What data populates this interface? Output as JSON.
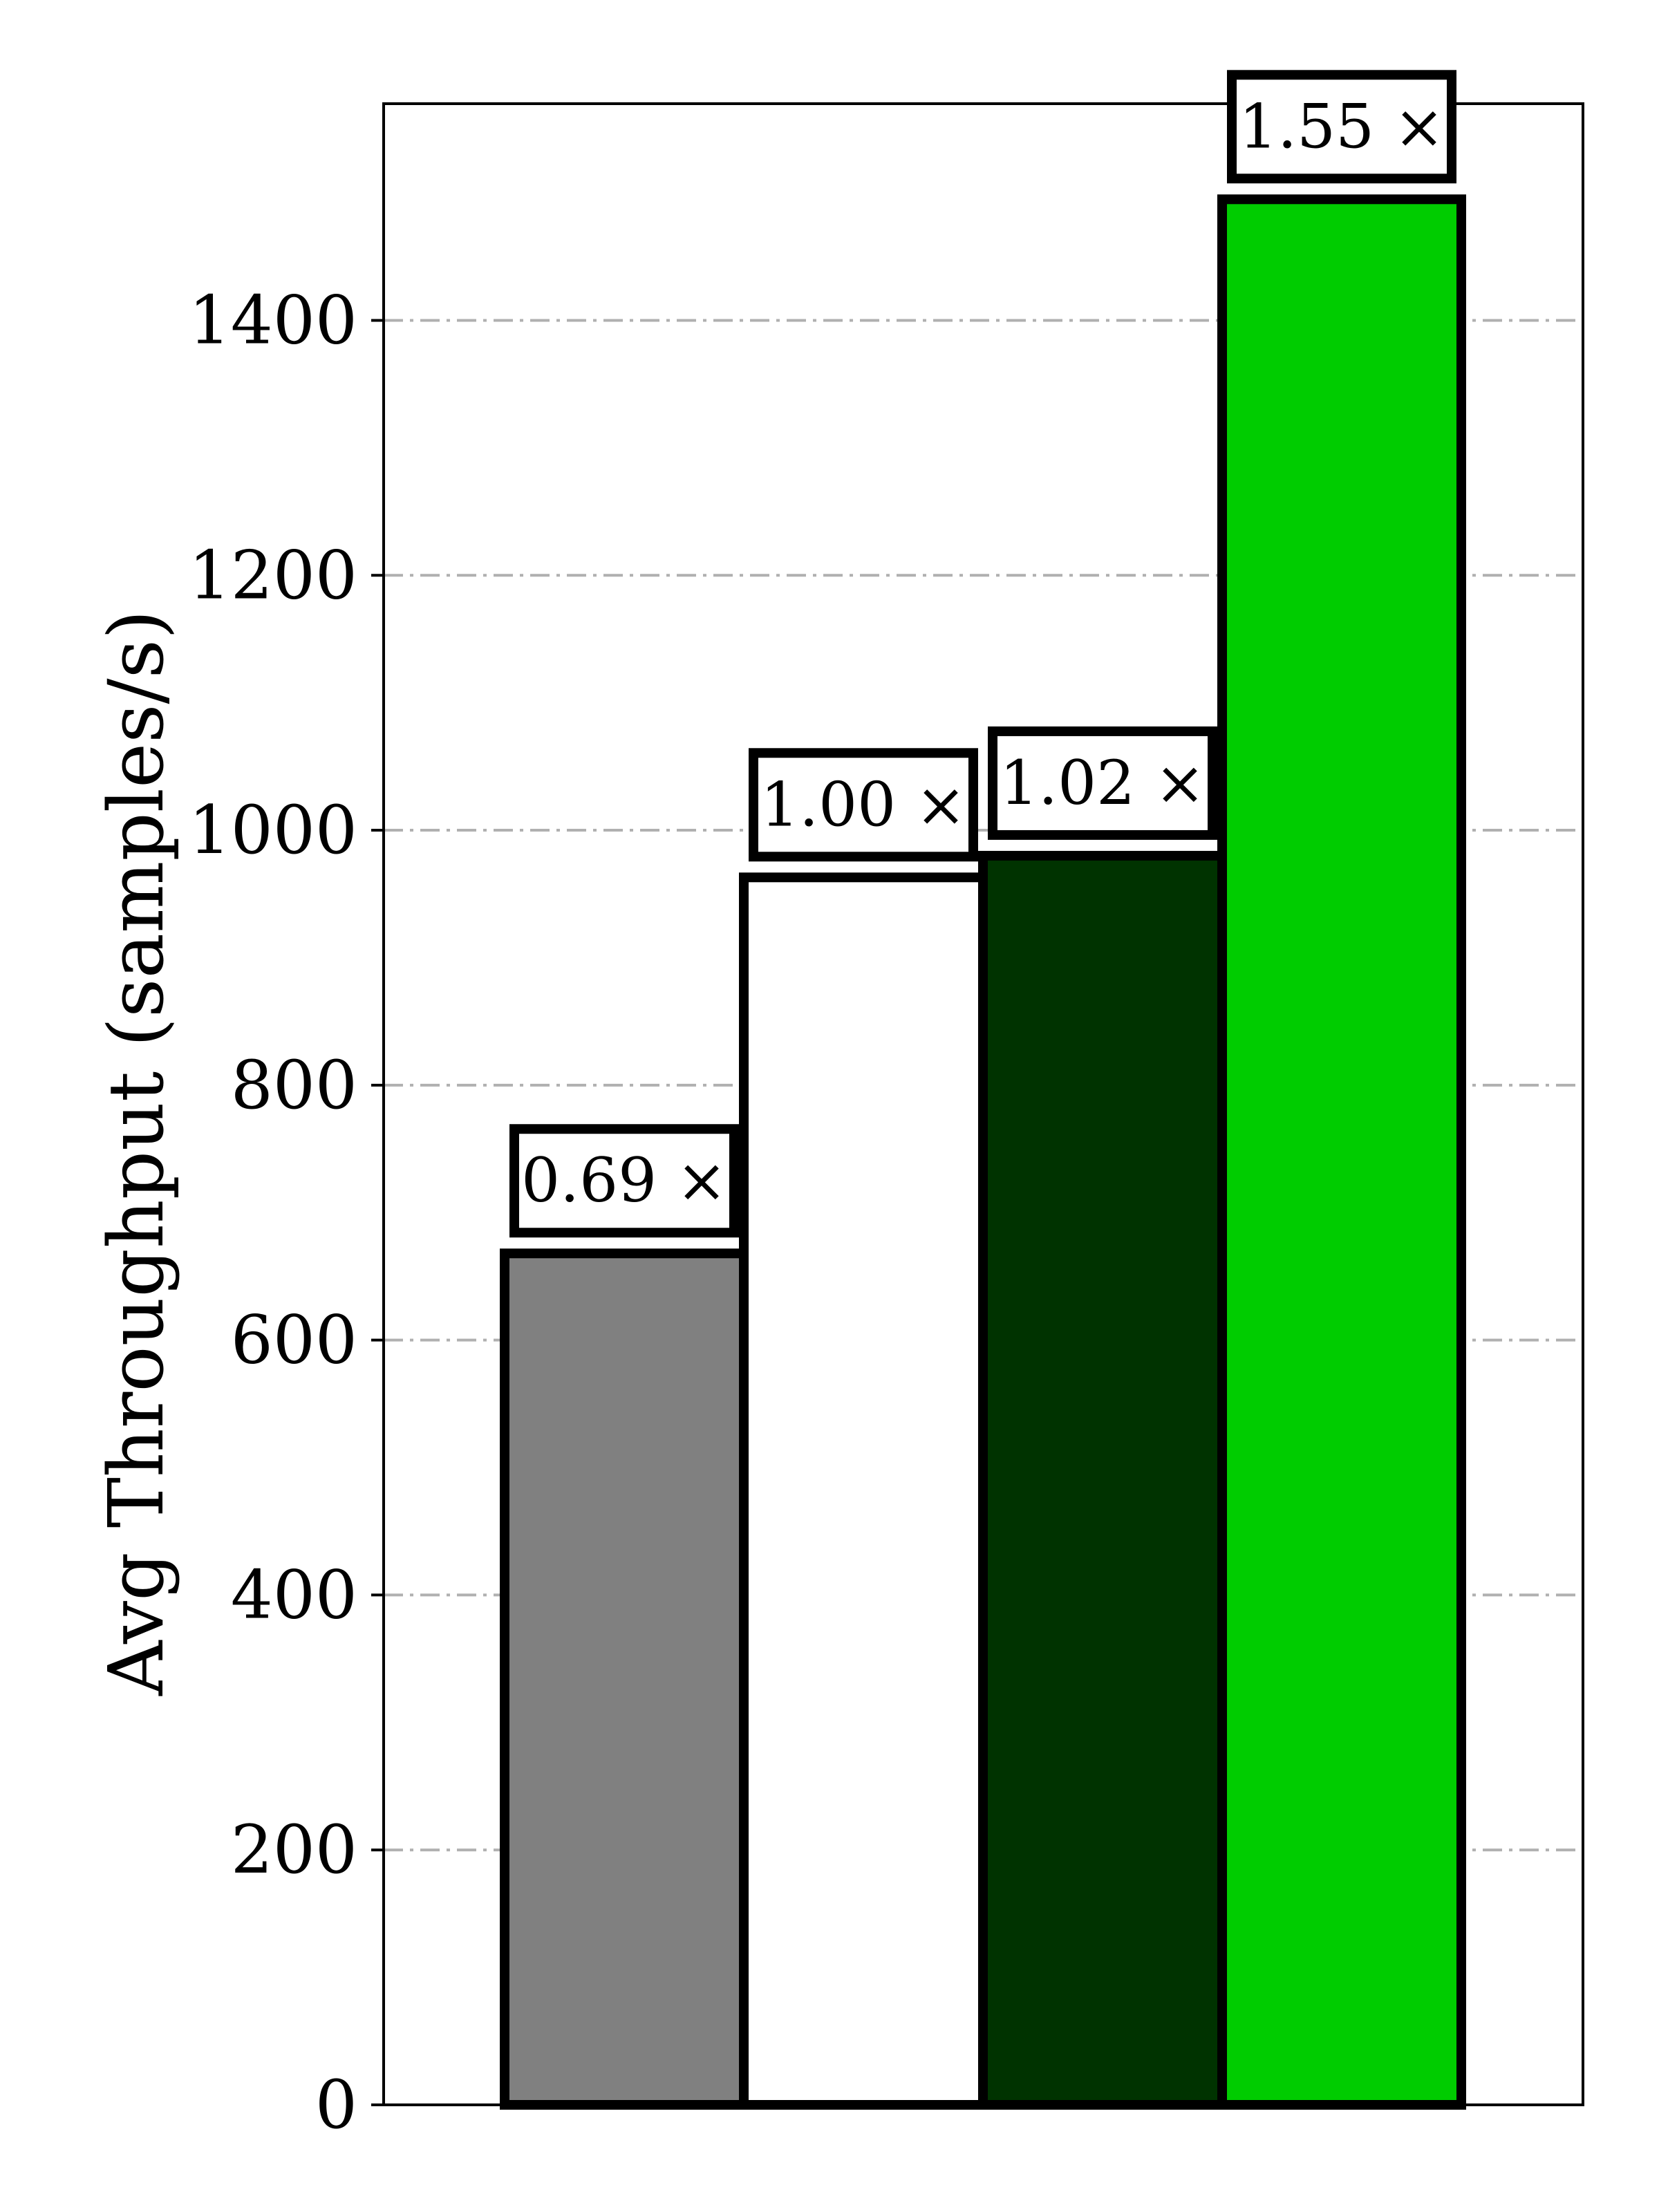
{
  "chart_data": {
    "type": "bar",
    "ylabel": "Avg Throughput (samples/s)",
    "xlabel": "",
    "ylim": [
      0,
      1570
    ],
    "yticks": [
      0,
      200,
      400,
      600,
      800,
      1000,
      1200,
      1400
    ],
    "ytick_labels": [
      "0",
      "200",
      "400",
      "600",
      "800",
      "1000",
      "1200",
      "1400"
    ],
    "grid": true,
    "grid_axis": "y",
    "grid_style": "dash-dot",
    "grid_color": "#b0b0b0",
    "bars": [
      {
        "value": 668,
        "color": "#808080",
        "label": "0.69 ×"
      },
      {
        "value": 963,
        "color": "#ffffff",
        "label": "1.00 ×"
      },
      {
        "value": 980,
        "color": "#003300",
        "label": "1.02 ×"
      },
      {
        "value": 1495,
        "color": "#00cc00",
        "label": "1.55 ×"
      }
    ],
    "edge_color": "#000000"
  }
}
